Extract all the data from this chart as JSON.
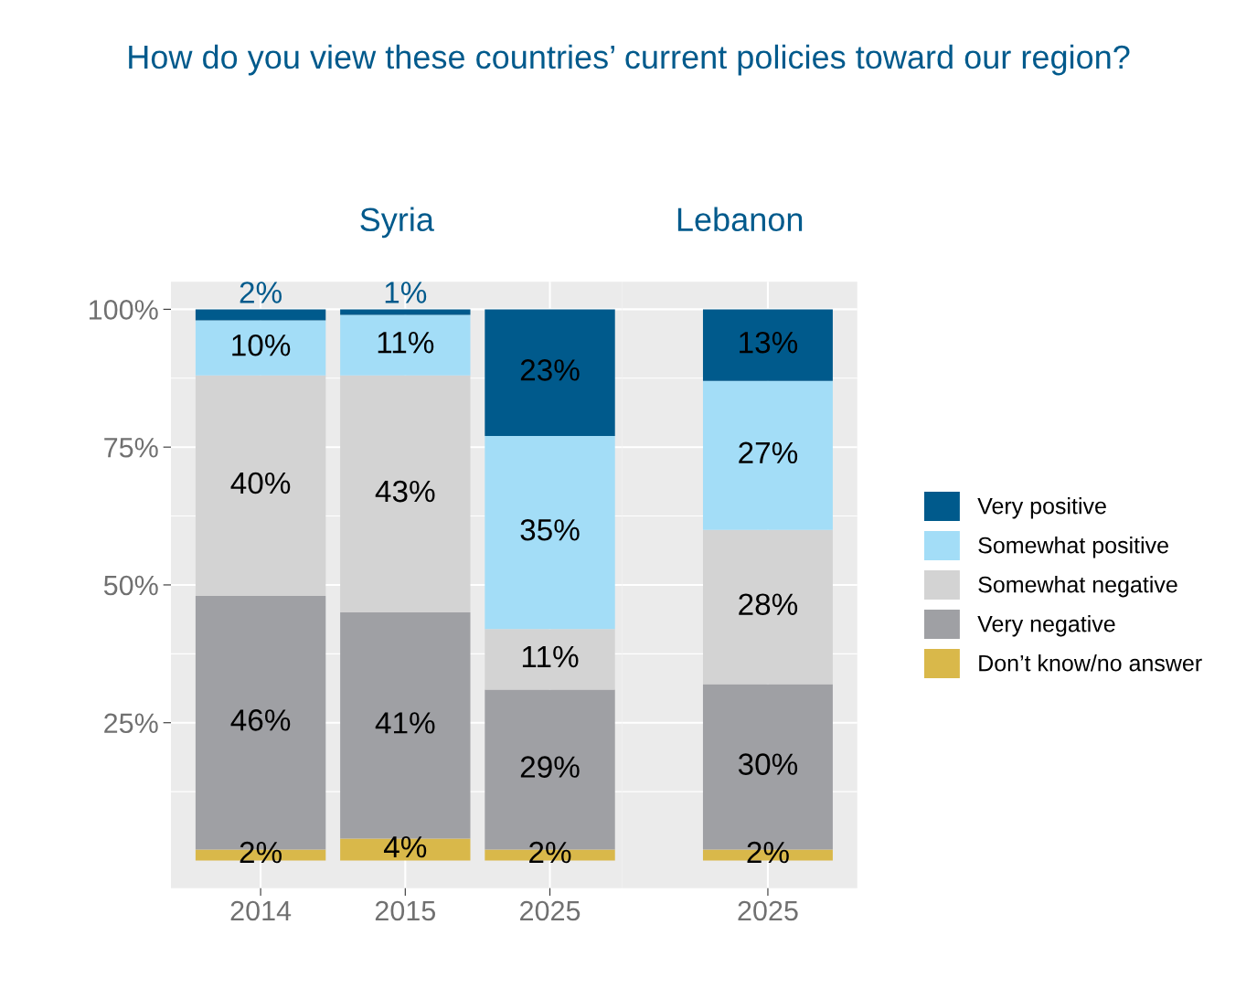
{
  "chart_data": [
    {
      "type": "bar",
      "stacked": true,
      "title": "How do you view these countries’ current policies toward our region?",
      "subtitle": "Syria",
      "categories": [
        "2014",
        "2015",
        "2025"
      ],
      "series": [
        {
          "color": "#d9b84a",
          "values": [
            2,
            4,
            2
          ],
          "value_labels": [
            "2%",
            "4%",
            "2%"
          ]
        },
        {
          "color": "#9fa0a4",
          "values": [
            46,
            41,
            29
          ],
          "value_labels": [
            "46%",
            "41%",
            "29%"
          ]
        },
        {
          "color": "#d3d3d3",
          "values": [
            40,
            43,
            11
          ],
          "value_labels": [
            "40%",
            "43%",
            "11%"
          ]
        },
        {
          "color": "#a3ddf7",
          "values": [
            10,
            11,
            35
          ],
          "value_labels": [
            "10%",
            "11%",
            "35%"
          ]
        },
        {
          "color": "#005a8c",
          "values": [
            2,
            1,
            23
          ],
          "value_labels": [
            "2%",
            "1%",
            "23%"
          ]
        }
      ],
      "ylim": [
        -5,
        105
      ],
      "yticks": [
        {
          "value": 25,
          "label": "25%"
        },
        {
          "value": 50,
          "label": "50%"
        },
        {
          "value": 75,
          "label": "75%"
        },
        {
          "value": 100,
          "label": "100%"
        }
      ],
      "grid": true,
      "legend": false
    },
    {
      "type": "bar",
      "stacked": true,
      "subtitle": "Lebanon",
      "categories": [
        "2025"
      ],
      "series": [
        {
          "name": "Don’t know/no answer",
          "color": "#d9b84a",
          "values": [
            2
          ],
          "value_labels": [
            "2%"
          ]
        },
        {
          "name": "Very negative",
          "color": "#9fa0a4",
          "values": [
            30
          ],
          "value_labels": [
            "30%"
          ]
        },
        {
          "name": "Somewhat negative",
          "color": "#d3d3d3",
          "values": [
            28
          ],
          "value_labels": [
            "28%"
          ]
        },
        {
          "name": "Somewhat positive",
          "color": "#a3ddf7",
          "values": [
            27
          ],
          "value_labels": [
            "27%"
          ]
        },
        {
          "name": "Very positive",
          "color": "#005a8c",
          "values": [
            13
          ],
          "value_labels": [
            "13%"
          ]
        }
      ],
      "ylim": [
        -5,
        105
      ],
      "grid": true,
      "legend": "right",
      "tick_labels": "x"
    }
  ]
}
